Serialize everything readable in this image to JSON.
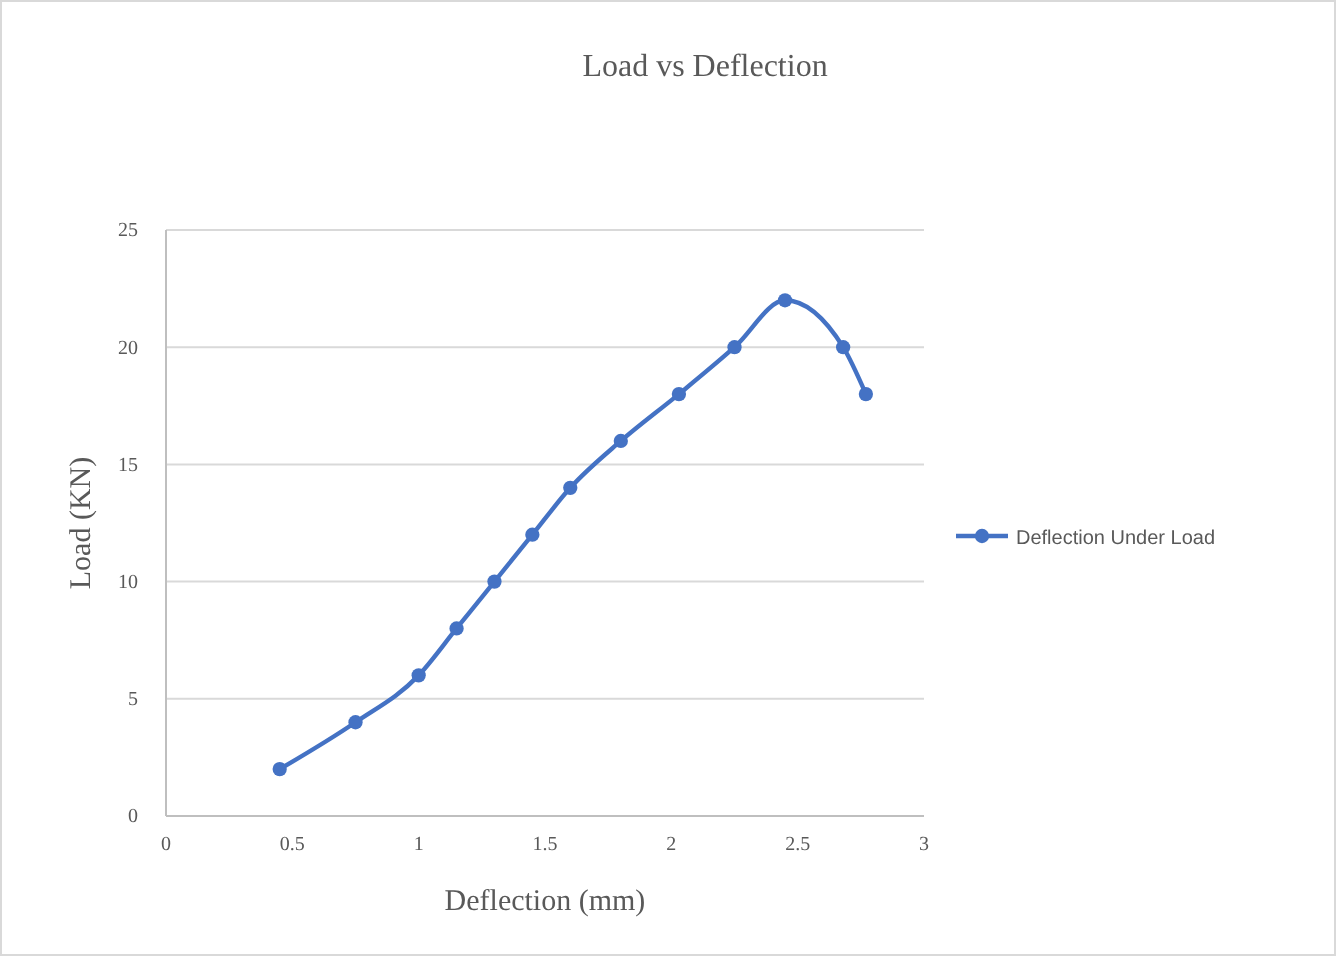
{
  "chart_data": {
    "type": "line",
    "title": "Load vs Deflection",
    "xlabel": "Deflection (mm)",
    "ylabel": "Load (KN)",
    "xlim": [
      0,
      3
    ],
    "xticks": [
      0,
      0.5,
      1,
      1.5,
      2,
      2.5,
      3
    ],
    "ylim": [
      0,
      25
    ],
    "yticks": [
      0,
      5,
      10,
      15,
      20,
      25
    ],
    "grid": "y",
    "legend": "right",
    "marker": "circle",
    "series": [
      {
        "name": "Deflection Under Load",
        "color": "#4472c4",
        "x": [
          0.45,
          0.75,
          1.0,
          1.15,
          1.3,
          1.45,
          1.6,
          1.8,
          2.03,
          2.25,
          2.45,
          2.68,
          2.77
        ],
        "values": [
          2,
          4,
          6,
          8,
          10,
          12,
          14,
          16,
          18,
          20,
          22,
          20,
          18
        ]
      }
    ]
  }
}
